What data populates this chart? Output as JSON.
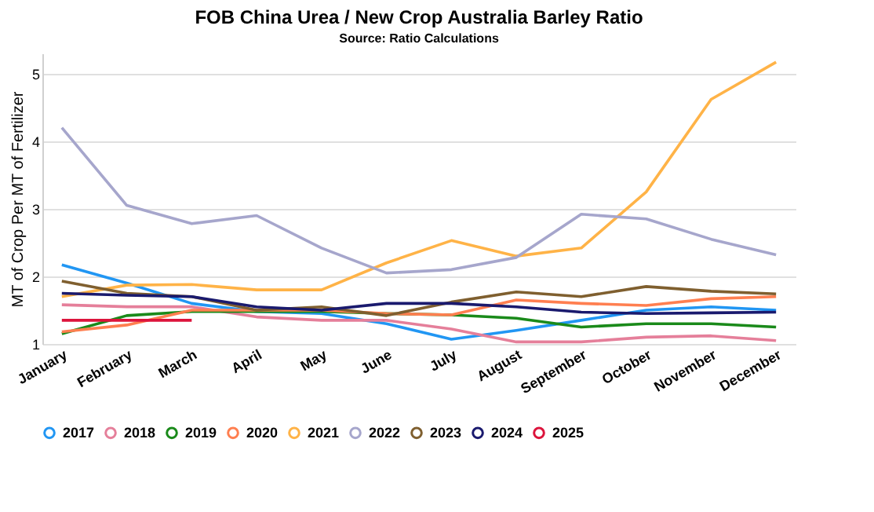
{
  "chart_data": {
    "type": "line",
    "title": "FOB China Urea / New Crop Australia Barley Ratio",
    "subtitle": "Source: Ratio Calculations",
    "ylabel": "MT of Crop Per MT of Fertilizer",
    "categories": [
      "January",
      "February",
      "March",
      "April",
      "May",
      "June",
      "July",
      "August",
      "September",
      "October",
      "November",
      "December"
    ],
    "series": [
      {
        "name": "2017",
        "color": "#2196f3",
        "values": [
          2.17,
          1.9,
          1.6,
          1.48,
          1.45,
          1.3,
          1.07,
          1.2,
          1.35,
          1.5,
          1.55,
          1.5
        ]
      },
      {
        "name": "2018",
        "color": "#e57f9a",
        "values": [
          1.58,
          1.55,
          1.55,
          1.4,
          1.35,
          1.35,
          1.22,
          1.03,
          1.03,
          1.1,
          1.12,
          1.05
        ]
      },
      {
        "name": "2019",
        "color": "#1a8a1a",
        "values": [
          1.15,
          1.42,
          1.48,
          1.48,
          1.48,
          1.45,
          1.43,
          1.38,
          1.25,
          1.3,
          1.3,
          1.25
        ]
      },
      {
        "name": "2020",
        "color": "#ff7f50",
        "values": [
          1.18,
          1.28,
          1.5,
          1.5,
          1.5,
          1.45,
          1.43,
          1.65,
          1.6,
          1.57,
          1.67,
          1.7
        ]
      },
      {
        "name": "2021",
        "color": "#ffb347",
        "values": [
          1.7,
          1.87,
          1.88,
          1.8,
          1.8,
          2.2,
          2.53,
          2.3,
          2.42,
          3.25,
          4.62,
          5.17
        ]
      },
      {
        "name": "2022",
        "color": "#a6a6cc",
        "values": [
          4.2,
          3.05,
          2.78,
          2.9,
          2.42,
          2.05,
          2.1,
          2.28,
          2.92,
          2.85,
          2.55,
          2.32
        ]
      },
      {
        "name": "2023",
        "color": "#7f5f2f",
        "values": [
          1.93,
          1.75,
          1.7,
          1.5,
          1.55,
          1.42,
          1.62,
          1.77,
          1.7,
          1.85,
          1.78,
          1.74
        ]
      },
      {
        "name": "2024",
        "color": "#1a1a6e",
        "values": [
          1.75,
          1.72,
          1.7,
          1.55,
          1.5,
          1.6,
          1.6,
          1.55,
          1.47,
          1.45,
          1.46,
          1.47
        ]
      },
      {
        "name": "2025",
        "color": "#dc143c",
        "values": [
          1.35,
          1.35,
          1.35,
          null,
          null,
          null,
          null,
          null,
          null,
          null,
          null,
          null
        ]
      }
    ],
    "ylim": [
      1,
      5.3
    ],
    "yticks": [
      1,
      2,
      3,
      4,
      5
    ],
    "grid": "y",
    "legend": "bottom"
  }
}
